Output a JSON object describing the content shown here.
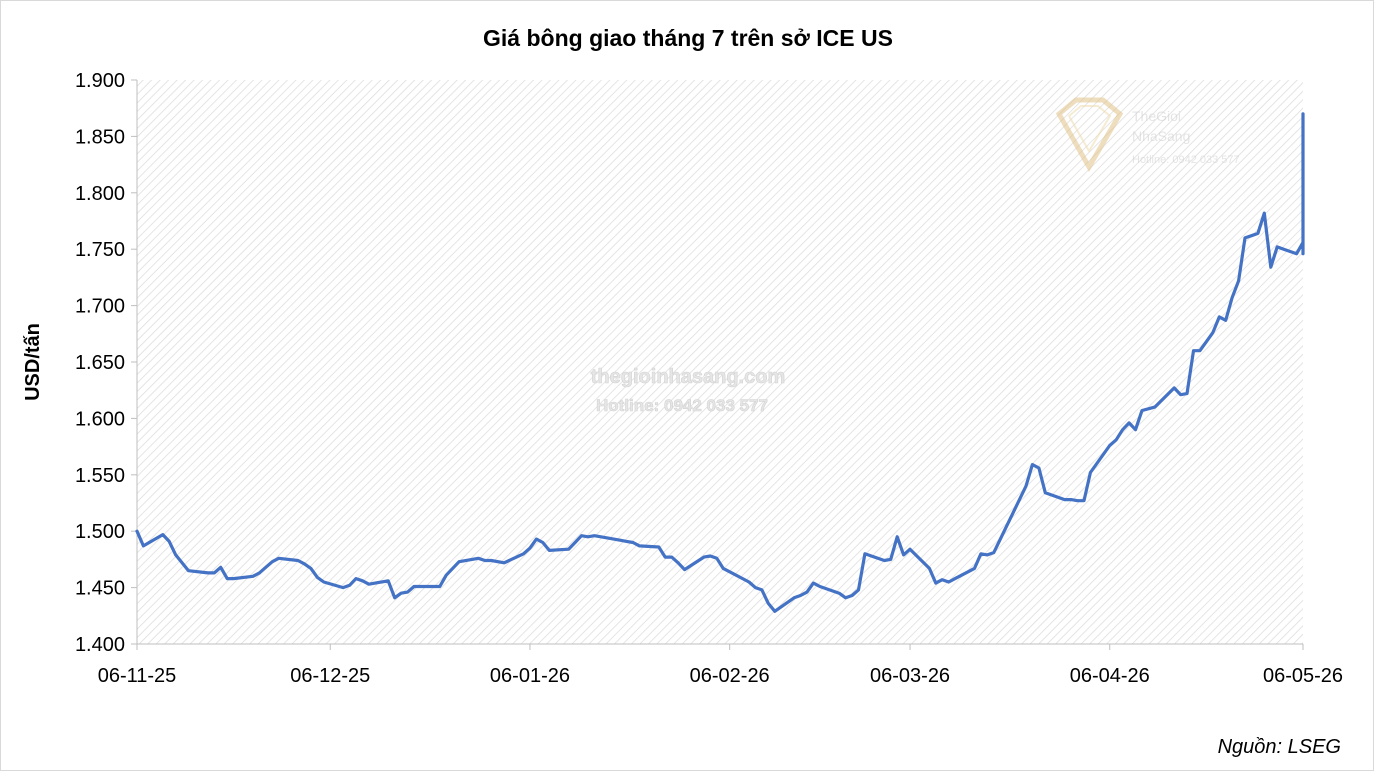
{
  "chart_data": {
    "type": "line",
    "title": "Giá bông giao tháng 7 trên sở ICE US",
    "xlabel": "",
    "ylabel": "USD/tấn",
    "ylim": [
      1400,
      1900
    ],
    "yticks": [
      1400,
      1450,
      1500,
      1550,
      1600,
      1650,
      1700,
      1750,
      1800,
      1850,
      1900
    ],
    "ytick_labels": [
      "1.400",
      "1.450",
      "1.500",
      "1.550",
      "1.600",
      "1.650",
      "1.700",
      "1.750",
      "1.800",
      "1.850",
      "1.900"
    ],
    "xlim": [
      "2025-11-06",
      "2026-05-06"
    ],
    "xticks": [
      "2025-11-06",
      "2025-12-06",
      "2026-01-06",
      "2026-02-06",
      "2026-03-06",
      "2026-04-06",
      "2026-05-06"
    ],
    "xtick_labels": [
      "06-11-25",
      "06-12-25",
      "06-01-26",
      "06-02-26",
      "06-03-26",
      "06-04-26",
      "06-05-26"
    ],
    "grid": false,
    "source": "Nguồn: LSEG",
    "series": [
      {
        "color": "#4472c4",
        "points": [
          [
            "2025-11-06",
            1500
          ],
          [
            "2025-11-07",
            1487
          ],
          [
            "2025-11-10",
            1497
          ],
          [
            "2025-11-11",
            1491
          ],
          [
            "2025-11-12",
            1479
          ],
          [
            "2025-11-14",
            1465
          ],
          [
            "2025-11-17",
            1463
          ],
          [
            "2025-11-18",
            1463
          ],
          [
            "2025-11-19",
            1468
          ],
          [
            "2025-11-20",
            1458
          ],
          [
            "2025-11-21",
            1458
          ],
          [
            "2025-11-24",
            1460
          ],
          [
            "2025-11-25",
            1463
          ],
          [
            "2025-11-26",
            1468
          ],
          [
            "2025-11-27",
            1473
          ],
          [
            "2025-11-28",
            1476
          ],
          [
            "2025-12-01",
            1474
          ],
          [
            "2025-12-02",
            1471
          ],
          [
            "2025-12-03",
            1467
          ],
          [
            "2025-12-04",
            1459
          ],
          [
            "2025-12-05",
            1455
          ],
          [
            "2025-12-08",
            1450
          ],
          [
            "2025-12-09",
            1452
          ],
          [
            "2025-12-10",
            1458
          ],
          [
            "2025-12-11",
            1456
          ],
          [
            "2025-12-12",
            1453
          ],
          [
            "2025-12-15",
            1456
          ],
          [
            "2025-12-16",
            1441
          ],
          [
            "2025-12-17",
            1445
          ],
          [
            "2025-12-18",
            1446
          ],
          [
            "2025-12-19",
            1451
          ],
          [
            "2025-12-22",
            1451
          ],
          [
            "2025-12-23",
            1451
          ],
          [
            "2025-12-24",
            1461
          ],
          [
            "2025-12-26",
            1473
          ],
          [
            "2025-12-29",
            1476
          ],
          [
            "2025-12-30",
            1474
          ],
          [
            "2025-12-31",
            1474
          ],
          [
            "2026-01-02",
            1472
          ],
          [
            "2026-01-05",
            1480
          ],
          [
            "2026-01-06",
            1485
          ],
          [
            "2026-01-07",
            1493
          ],
          [
            "2026-01-08",
            1490
          ],
          [
            "2026-01-09",
            1483
          ],
          [
            "2026-01-12",
            1484
          ],
          [
            "2026-01-13",
            1490
          ],
          [
            "2026-01-14",
            1496
          ],
          [
            "2026-01-15",
            1495
          ],
          [
            "2026-01-16",
            1496
          ],
          [
            "2026-01-20",
            1492
          ],
          [
            "2026-01-21",
            1491
          ],
          [
            "2026-01-22",
            1490
          ],
          [
            "2026-01-23",
            1487
          ],
          [
            "2026-01-26",
            1486
          ],
          [
            "2026-01-27",
            1477
          ],
          [
            "2026-01-28",
            1477
          ],
          [
            "2026-01-29",
            1472
          ],
          [
            "2026-01-30",
            1466
          ],
          [
            "2026-02-02",
            1477
          ],
          [
            "2026-02-03",
            1478
          ],
          [
            "2026-02-04",
            1476
          ],
          [
            "2026-02-05",
            1467
          ],
          [
            "2026-02-06",
            1464
          ],
          [
            "2026-02-09",
            1455
          ],
          [
            "2026-02-10",
            1450
          ],
          [
            "2026-02-11",
            1448
          ],
          [
            "2026-02-12",
            1436
          ],
          [
            "2026-02-13",
            1429
          ],
          [
            "2026-02-16",
            1441
          ],
          [
            "2026-02-17",
            1443
          ],
          [
            "2026-02-18",
            1446
          ],
          [
            "2026-02-19",
            1454
          ],
          [
            "2026-02-20",
            1451
          ],
          [
            "2026-02-23",
            1445
          ],
          [
            "2026-02-24",
            1441
          ],
          [
            "2026-02-25",
            1443
          ],
          [
            "2026-02-26",
            1448
          ],
          [
            "2026-02-27",
            1480
          ],
          [
            "2026-03-02",
            1474
          ],
          [
            "2026-03-03",
            1475
          ],
          [
            "2026-03-04",
            1495
          ],
          [
            "2026-03-05",
            1479
          ],
          [
            "2026-03-06",
            1484
          ],
          [
            "2026-03-09",
            1467
          ],
          [
            "2026-03-10",
            1454
          ],
          [
            "2026-03-11",
            1457
          ],
          [
            "2026-03-12",
            1455
          ],
          [
            "2026-03-13",
            1458
          ],
          [
            "2026-03-16",
            1467
          ],
          [
            "2026-03-17",
            1480
          ],
          [
            "2026-03-18",
            1479
          ],
          [
            "2026-03-19",
            1481
          ],
          [
            "2026-03-24",
            1540
          ],
          [
            "2026-03-25",
            1559
          ],
          [
            "2026-03-26",
            1556
          ],
          [
            "2026-03-27",
            1534
          ],
          [
            "2026-03-30",
            1528
          ],
          [
            "2026-03-31",
            1528
          ],
          [
            "2026-04-01",
            1527
          ],
          [
            "2026-04-02",
            1527
          ],
          [
            "2026-04-03",
            1552
          ],
          [
            "2026-04-06",
            1576
          ],
          [
            "2026-04-07",
            1581
          ],
          [
            "2026-04-08",
            1590
          ],
          [
            "2026-04-09",
            1596
          ],
          [
            "2026-04-10",
            1590
          ],
          [
            "2026-04-11",
            1607
          ],
          [
            "2026-04-13",
            1610
          ],
          [
            "2026-04-16",
            1627
          ],
          [
            "2026-04-17",
            1621
          ],
          [
            "2026-04-18",
            1622
          ],
          [
            "2026-04-19",
            1660
          ],
          [
            "2026-04-20",
            1660
          ],
          [
            "2026-04-22",
            1676
          ],
          [
            "2026-04-23",
            1690
          ],
          [
            "2026-04-24",
            1687
          ],
          [
            "2026-04-25",
            1707
          ],
          [
            "2026-04-26",
            1722
          ],
          [
            "2026-04-27",
            1760
          ],
          [
            "2026-04-28",
            1762
          ],
          [
            "2026-04-29",
            1764
          ],
          [
            "2026-04-30",
            1782
          ],
          [
            "2026-05-01",
            1734
          ],
          [
            "2026-05-02",
            1752
          ],
          [
            "2026-05-03",
            1750
          ],
          [
            "2026-05-05",
            1746
          ],
          [
            "2026-05-06",
            1756
          ],
          [
            "2026-05-07",
            1746
          ],
          [
            "2026-05-08",
            1812
          ],
          [
            "2026-05-09",
            1857
          ],
          [
            "2026-05-12",
            1828
          ],
          [
            "2026-05-13",
            1870
          ],
          [
            "2026-05-14",
            1860
          ]
        ]
      }
    ]
  },
  "watermark": {
    "site": "thegioinhasang.com",
    "hotline": "Hotline: 0942 033 577",
    "logo_line1": "TheGioi",
    "logo_line2": "NhaSang",
    "logo_hotline": "Hotline: 0942 033 577"
  }
}
